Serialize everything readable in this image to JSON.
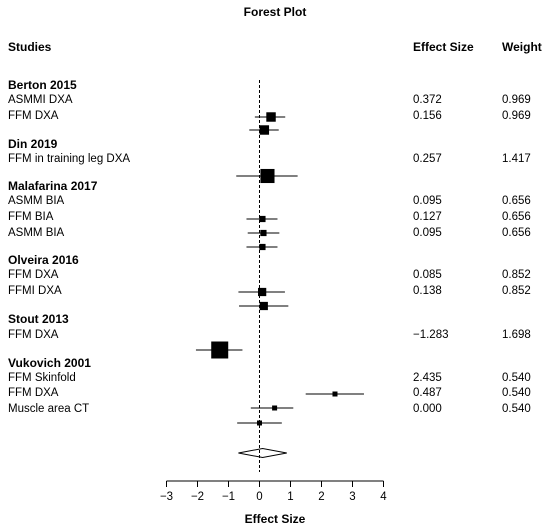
{
  "chart_data": {
    "type": "forest",
    "title": "Forest Plot",
    "headers": {
      "studies": "Studies",
      "effect": "Effect Size",
      "weight": "Weight"
    },
    "xlabel": "Effect Size",
    "xlim": [
      -3,
      4
    ],
    "ticks": [
      "−3",
      "−2",
      "−1",
      "0",
      "1",
      "2",
      "3",
      "4"
    ],
    "groups": [
      {
        "study": "Berton 2015",
        "rows": [
          {
            "label": "ASMMI DXA",
            "effect": "0.372",
            "weight": "0.969",
            "est": 0.372,
            "lo": -0.15,
            "hi": 0.83
          },
          {
            "label": "FFM DXA",
            "effect": "0.156",
            "weight": "0.969",
            "est": 0.156,
            "lo": -0.33,
            "hi": 0.62
          }
        ]
      },
      {
        "study": "Din 2019",
        "rows": [
          {
            "label": "FFM in training leg DXA",
            "effect": "0.257",
            "weight": "1.417",
            "est": 0.257,
            "lo": -0.75,
            "hi": 1.23
          }
        ]
      },
      {
        "study": "Malafarina 2017",
        "rows": [
          {
            "label": "ASMM BIA",
            "effect": "0.095",
            "weight": "0.656",
            "est": 0.095,
            "lo": -0.42,
            "hi": 0.58
          },
          {
            "label": "FFM BIA",
            "effect": "0.127",
            "weight": "0.656",
            "est": 0.127,
            "lo": -0.38,
            "hi": 0.64
          },
          {
            "label": "ASMM BIA",
            "effect": "0.095",
            "weight": "0.656",
            "est": 0.095,
            "lo": -0.42,
            "hi": 0.58
          }
        ]
      },
      {
        "study": "Olveira 2016",
        "rows": [
          {
            "label": "FFM DXA",
            "effect": "0.085",
            "weight": "0.852",
            "est": 0.085,
            "lo": -0.68,
            "hi": 0.82
          },
          {
            "label": "FFMI DXA",
            "effect": "0.138",
            "weight": "0.852",
            "est": 0.138,
            "lo": -0.66,
            "hi": 0.93
          }
        ]
      },
      {
        "study": "Stout 2013",
        "rows": [
          {
            "label": "FFM DXA",
            "effect": "−1.283",
            "weight": "1.698",
            "est": -1.283,
            "lo": -2.05,
            "hi": -0.55
          }
        ]
      },
      {
        "study": "Vukovich 2001",
        "rows": [
          {
            "label": "FFM Skinfold",
            "effect": "2.435",
            "weight": "0.540",
            "est": 2.435,
            "lo": 1.49,
            "hi": 3.37
          },
          {
            "label": "FFM DXA",
            "effect": "0.487",
            "weight": "0.540",
            "est": 0.487,
            "lo": -0.28,
            "hi": 1.09
          },
          {
            "label": "Muscle area CT",
            "effect": "0.000",
            "weight": "0.540",
            "est": 0.0,
            "lo": -0.72,
            "hi": 0.72
          }
        ]
      }
    ],
    "summary": {
      "est": 0.1,
      "lo": -0.68,
      "hi": 0.88
    }
  }
}
